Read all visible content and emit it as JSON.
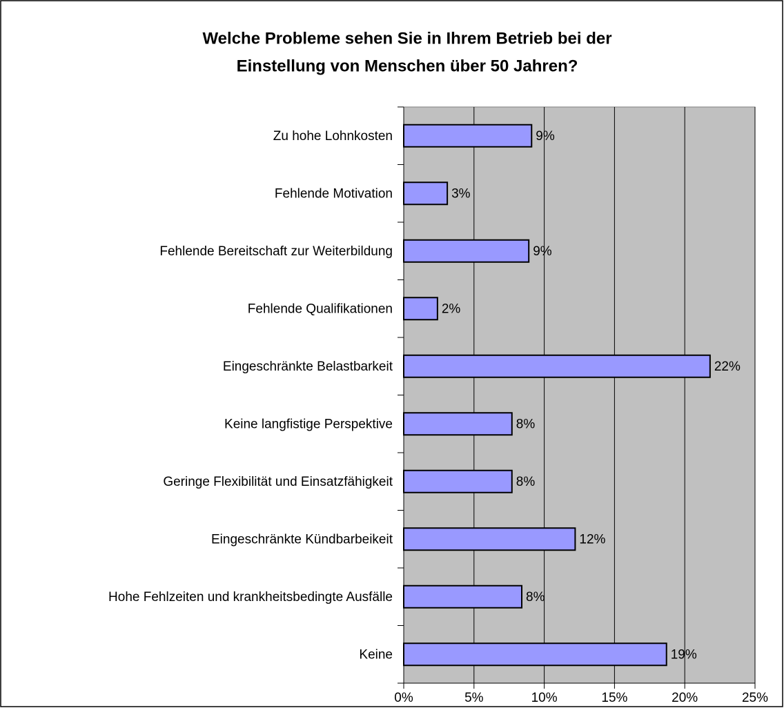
{
  "chart_data": {
    "type": "barh",
    "title": [
      "Welche Probleme sehen Sie in Ihrem Betrieb bei der",
      "Einstellung von Menschen über 50 Jahren?"
    ],
    "categories": [
      "Zu hohe Lohnkosten",
      "Fehlende Motivation",
      "Fehlende Bereitschaft zur Weiterbildung",
      "Fehlende Qualifikationen",
      "Eingeschränkte Belastbarkeit",
      "Keine langfistige Perspektive",
      "Geringe Flexibilität und Einsatzfähigkeit",
      "Eingeschränkte Kündbarbeikeit",
      "Hohe Fehlzeiten und krankheitsbedingte Ausfälle",
      "Keine"
    ],
    "values": [
      9.1,
      3.1,
      8.9,
      2.4,
      21.8,
      7.7,
      7.7,
      12.2,
      8.4,
      18.7
    ],
    "value_labels": [
      "9%",
      "3%",
      "9%",
      "2%",
      "22%",
      "8%",
      "8%",
      "12%",
      "8%",
      "19%"
    ],
    "color": "#9999ff",
    "xlim": [
      0,
      25
    ],
    "xticks": [
      {
        "value": 0,
        "label": "0%"
      },
      {
        "value": 5,
        "label": "5%"
      },
      {
        "value": 10,
        "label": "10%"
      },
      {
        "value": 15,
        "label": "15%"
      },
      {
        "value": 20,
        "label": "20%"
      },
      {
        "value": 25,
        "label": "25%"
      }
    ],
    "grid": true
  }
}
